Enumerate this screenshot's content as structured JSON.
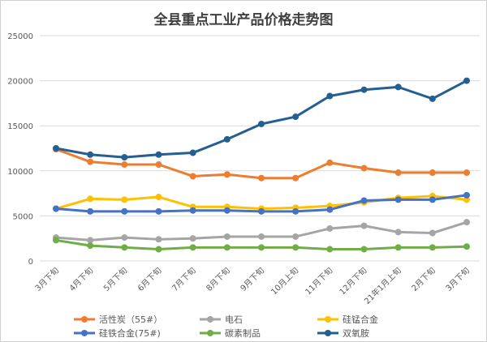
{
  "chart_data": {
    "type": "line",
    "title": "全县重点工业产品价格走势图",
    "xlabel": "",
    "ylabel": "",
    "ylim": [
      0,
      25000
    ],
    "yticks": [
      0,
      5000,
      10000,
      15000,
      20000,
      25000
    ],
    "grid": true,
    "legend_position": "bottom",
    "categories": [
      "3月下旬",
      "4月下旬",
      "5月下旬",
      "6月下旬",
      "7月下旬",
      "8月下旬",
      "9月下旬",
      "10月上旬",
      "11月下旬",
      "12月下旬",
      "21年1月上旬",
      "2月下旬",
      "3月下旬"
    ],
    "series": [
      {
        "name": "活性炭（55#）",
        "color": "#ED7D31",
        "values": [
          12400,
          11000,
          10700,
          10700,
          9400,
          9600,
          9200,
          9200,
          10900,
          10300,
          9800,
          9800,
          9800
        ]
      },
      {
        "name": "电石",
        "color": "#A5A5A5",
        "values": [
          2600,
          2300,
          2600,
          2400,
          2500,
          2700,
          2700,
          2700,
          3600,
          3900,
          3200,
          3100,
          4300
        ]
      },
      {
        "name": "硅锰合金",
        "color": "#FFC000",
        "values": [
          5800,
          6900,
          6800,
          7100,
          6000,
          6000,
          5800,
          5900,
          6100,
          6500,
          7000,
          7200,
          6800
        ]
      },
      {
        "name": "硅铁合金(75#)",
        "color": "#4472C4",
        "values": [
          5800,
          5500,
          5500,
          5500,
          5600,
          5600,
          5500,
          5500,
          5700,
          6700,
          6800,
          6800,
          7300
        ]
      },
      {
        "name": "碳素制品",
        "color": "#70AD47",
        "values": [
          2300,
          1700,
          1500,
          1300,
          1500,
          1500,
          1500,
          1500,
          1300,
          1300,
          1500,
          1500,
          1600
        ]
      },
      {
        "name": "双氧胺",
        "color": "#255E91",
        "values": [
          12500,
          11800,
          11500,
          11800,
          12000,
          13500,
          15200,
          16000,
          18300,
          19000,
          19300,
          18000,
          20000
        ]
      }
    ]
  }
}
